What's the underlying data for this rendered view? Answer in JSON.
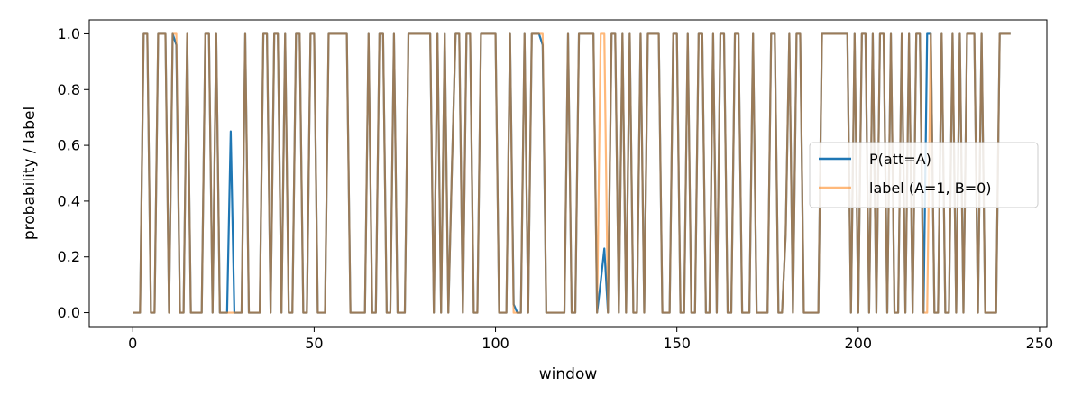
{
  "chart_data": {
    "type": "line",
    "title": "",
    "xlabel": "window",
    "ylabel": "probability / label",
    "xlim": [
      -12,
      252
    ],
    "ylim": [
      -0.05,
      1.05
    ],
    "xticks": [
      0,
      50,
      100,
      150,
      200,
      250
    ],
    "yticks": [
      0.0,
      0.2,
      0.4,
      0.6,
      0.8,
      1.0
    ],
    "xtick_labels": [
      "0",
      "50",
      "100",
      "150",
      "200",
      "250"
    ],
    "ytick_labels": [
      "0.0",
      "0.2",
      "0.4",
      "0.6",
      "0.8",
      "1.0"
    ],
    "grid": false,
    "legend_position": "center-right",
    "series": [
      {
        "name": "P(att=A)",
        "color": "#1f77b4",
        "opacity": 1.0,
        "values": [
          0,
          0,
          0,
          1,
          1,
          0,
          0,
          1,
          1,
          1,
          0,
          1,
          0.96,
          0,
          0,
          1,
          0,
          0,
          0,
          0,
          1,
          1,
          0,
          1,
          0,
          0,
          0,
          0.65,
          0,
          0,
          0,
          1,
          0,
          0,
          0,
          0,
          1,
          1,
          0,
          1,
          1,
          0,
          1,
          0,
          0,
          1,
          1,
          0,
          0,
          1,
          1,
          0,
          0,
          0,
          1,
          1,
          1,
          1,
          1,
          1,
          0,
          0,
          0,
          0,
          0,
          1,
          0,
          0,
          1,
          1,
          0,
          0,
          1,
          0,
          0,
          0,
          1,
          1,
          1,
          1,
          1,
          1,
          1,
          0,
          1,
          0,
          1,
          0,
          0.53,
          1,
          1,
          0,
          1,
          1,
          0,
          0,
          1,
          1,
          1,
          1,
          1,
          0,
          0,
          0,
          1,
          0.03,
          0,
          0,
          1,
          0,
          1,
          1,
          1,
          0.96,
          0,
          0,
          0,
          0,
          0,
          0,
          1,
          0,
          0,
          1,
          1,
          1,
          1,
          1,
          0,
          0.11,
          0.23,
          0,
          1,
          1,
          0,
          1,
          0,
          1,
          0,
          0,
          1,
          0,
          1,
          1,
          1,
          1,
          0,
          0,
          0,
          1,
          1,
          0,
          0,
          1,
          0,
          0,
          1,
          1,
          0,
          0,
          1,
          0,
          1,
          1,
          0,
          0,
          1,
          1,
          0,
          0,
          0,
          1,
          0,
          0,
          0,
          0,
          1,
          1,
          0,
          0,
          0.28,
          1,
          0,
          1,
          1,
          0,
          0,
          0,
          0,
          0,
          1,
          1,
          1,
          1,
          1,
          1,
          1,
          1,
          0,
          1,
          0,
          1,
          1,
          0,
          1,
          0,
          1,
          1,
          0,
          1,
          0,
          0,
          1,
          0,
          1,
          0,
          1,
          1,
          0,
          1,
          1,
          0,
          0,
          1,
          0,
          0,
          1,
          0,
          1,
          0,
          1,
          1,
          1,
          0,
          1,
          0,
          0,
          0,
          0,
          1,
          1,
          1,
          1
        ]
      },
      {
        "name": "label (A=1, B=0)",
        "color": "#ff7f0e",
        "opacity": 0.55,
        "values": [
          0,
          0,
          0,
          1,
          1,
          0,
          0,
          1,
          1,
          1,
          0,
          1,
          1,
          0,
          0,
          1,
          0,
          0,
          0,
          0,
          1,
          1,
          0,
          1,
          0,
          0,
          0,
          0,
          0,
          0,
          0,
          1,
          0,
          0,
          0,
          0,
          1,
          1,
          0,
          1,
          1,
          0,
          1,
          0,
          0,
          1,
          1,
          0,
          0,
          1,
          1,
          0,
          0,
          0,
          1,
          1,
          1,
          1,
          1,
          1,
          0,
          0,
          0,
          0,
          0,
          1,
          0,
          0,
          1,
          1,
          0,
          0,
          1,
          0,
          0,
          0,
          1,
          1,
          1,
          1,
          1,
          1,
          1,
          0,
          1,
          0,
          1,
          0,
          0.53,
          1,
          1,
          0,
          1,
          1,
          0,
          0,
          1,
          1,
          1,
          1,
          1,
          0,
          0,
          0,
          1,
          0,
          0,
          0,
          1,
          0,
          1,
          1,
          1,
          1,
          0,
          0,
          0,
          0,
          0,
          0,
          1,
          0,
          0,
          1,
          1,
          1,
          1,
          1,
          0,
          1,
          1,
          0,
          1,
          1,
          0,
          1,
          0,
          1,
          0,
          0,
          1,
          0,
          1,
          1,
          1,
          1,
          0,
          0,
          0,
          1,
          1,
          0,
          0,
          1,
          0,
          0,
          1,
          1,
          0,
          0,
          1,
          0,
          1,
          1,
          0,
          0,
          1,
          1,
          0,
          0,
          0,
          1,
          0,
          0,
          0,
          0,
          1,
          1,
          0,
          0,
          0.28,
          1,
          0,
          1,
          1,
          0,
          0,
          0,
          0,
          0,
          1,
          1,
          1,
          1,
          1,
          1,
          1,
          1,
          0,
          1,
          0,
          1,
          1,
          0,
          1,
          0,
          1,
          1,
          0,
          1,
          0,
          0,
          1,
          0,
          1,
          0,
          1,
          1,
          0,
          0,
          1,
          0,
          0,
          1,
          0,
          0,
          1,
          0,
          1,
          0,
          1,
          1,
          1,
          0,
          1,
          0,
          0,
          0,
          0,
          1,
          1,
          1,
          1
        ]
      }
    ]
  }
}
